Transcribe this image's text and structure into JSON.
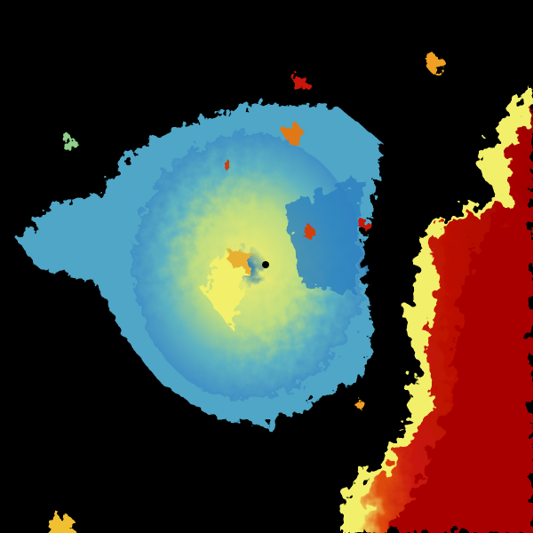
{
  "radar": {
    "background": "#000000",
    "palette": {
      "low": "#1f6fb5",
      "low_mid": "#4aa8c8",
      "mid": "#8fd08a",
      "mid_high": "#f2ef6a",
      "high": "#f0a020",
      "very_high": "#c81808",
      "extreme": "#a00000"
    },
    "site_marker": "radar-site"
  }
}
